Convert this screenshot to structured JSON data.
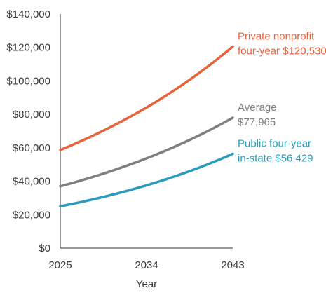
{
  "chart_data": {
    "type": "line",
    "title": "",
    "xlabel": "Year",
    "ylabel": "",
    "x": [
      2025,
      2034,
      2043
    ],
    "xticks": [
      "2025",
      "2034",
      "2043"
    ],
    "ylim": [
      0,
      140000
    ],
    "yticks": [
      0,
      20000,
      40000,
      60000,
      80000,
      100000,
      120000,
      140000
    ],
    "ytick_labels": [
      "$0",
      "$20,000",
      "$40,000",
      "$60,000",
      "$80,000",
      "$100,000",
      "$120,000",
      "$140,000"
    ],
    "grid": false,
    "series": [
      {
        "key": "private",
        "label_lines": [
          "Private nonprofit",
          "four-year $120,530"
        ],
        "color": "#e8623a",
        "start_value": 58700,
        "end_value": 120530
      },
      {
        "key": "average",
        "label_lines": [
          "Average",
          "$77,965"
        ],
        "color": "#7f7f7f",
        "start_value": 37000,
        "end_value": 77965
      },
      {
        "key": "public",
        "label_lines": [
          "Public four-year",
          "in-state $56,429"
        ],
        "color": "#2a9bbf",
        "start_value": 25000,
        "end_value": 56429
      }
    ]
  }
}
